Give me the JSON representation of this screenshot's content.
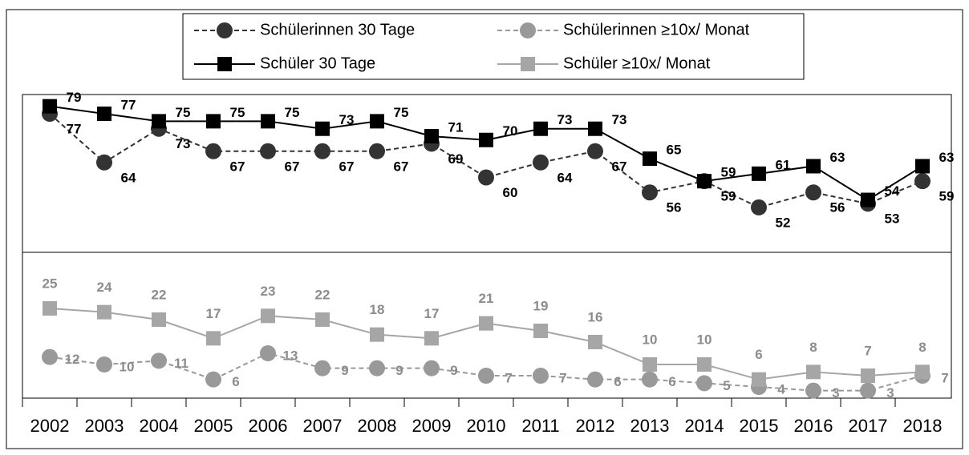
{
  "chart_data": [
    {
      "type": "line",
      "categories": [
        "2002",
        "2003",
        "2004",
        "2005",
        "2006",
        "2007",
        "2008",
        "2009",
        "2010",
        "2011",
        "2012",
        "2013",
        "2014",
        "2015",
        "2016",
        "2017",
        "2018"
      ],
      "ylim": [
        40,
        80
      ],
      "series": [
        {
          "name": "Schülerinnen 30 Tage",
          "color": "#333333",
          "marker": "circle",
          "dash": true,
          "values": [
            77,
            64,
            73,
            67,
            67,
            67,
            67,
            69,
            60,
            64,
            67,
            56,
            59,
            52,
            56,
            53,
            59
          ]
        },
        {
          "name": "Schüler 30 Tage",
          "color": "#000000",
          "marker": "square",
          "dash": false,
          "values": [
            79,
            77,
            75,
            75,
            75,
            73,
            75,
            71,
            70,
            73,
            73,
            65,
            59,
            61,
            63,
            54,
            63
          ]
        }
      ]
    },
    {
      "type": "line",
      "categories": [
        "2002",
        "2003",
        "2004",
        "2005",
        "2006",
        "2007",
        "2008",
        "2009",
        "2010",
        "2011",
        "2012",
        "2013",
        "2014",
        "2015",
        "2016",
        "2017",
        "2018"
      ],
      "ylim": [
        1,
        40
      ],
      "series": [
        {
          "name": "Schülerinnen ≥10x/ Monat",
          "color": "#999999",
          "marker": "circle",
          "dash": true,
          "values": [
            12,
            10,
            11,
            6,
            13,
            9,
            9,
            9,
            7,
            7,
            6,
            6,
            5,
            4,
            3,
            3,
            7
          ]
        },
        {
          "name": "Schüler ≥10x/ Monat",
          "color": "#a6a6a6",
          "marker": "square",
          "dash": false,
          "values": [
            25,
            24,
            22,
            17,
            23,
            22,
            18,
            17,
            21,
            19,
            16,
            10,
            10,
            6,
            8,
            7,
            8
          ]
        }
      ]
    }
  ]
}
